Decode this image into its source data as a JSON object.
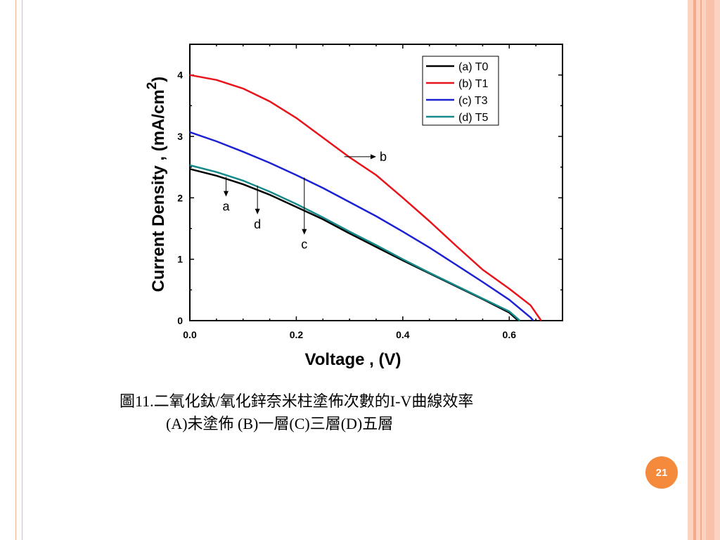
{
  "chart_data": {
    "type": "line",
    "xlabel": "Voltage , (V)",
    "ylabel": "Current Density , (mA/cm",
    "ylabel_sup": "2",
    "ylabel_close": ")",
    "xlim": [
      0,
      0.7
    ],
    "ylim": [
      0,
      4.5
    ],
    "xticks": [
      "0.0",
      "0.2",
      "0.4",
      "0.6"
    ],
    "yticks": [
      "0",
      "1",
      "2",
      "3",
      "4"
    ],
    "grid": false,
    "legend_position": "top-right",
    "series": [
      {
        "name": "(a) T0",
        "color": "#000000",
        "x": [
          0,
          0.05,
          0.1,
          0.15,
          0.2,
          0.25,
          0.3,
          0.35,
          0.4,
          0.45,
          0.5,
          0.55,
          0.6,
          0.61,
          0.617
        ],
        "y": [
          2.47,
          2.36,
          2.22,
          2.05,
          1.85,
          1.65,
          1.42,
          1.2,
          0.98,
          0.77,
          0.56,
          0.35,
          0.13,
          0.05,
          0
        ]
      },
      {
        "name": "(b) T1",
        "color": "#e8141b",
        "x": [
          0,
          0.05,
          0.1,
          0.15,
          0.2,
          0.25,
          0.3,
          0.35,
          0.4,
          0.45,
          0.5,
          0.55,
          0.6,
          0.64,
          0.66
        ],
        "y": [
          4.0,
          3.92,
          3.78,
          3.57,
          3.3,
          2.98,
          2.66,
          2.37,
          2.0,
          1.62,
          1.22,
          0.83,
          0.52,
          0.25,
          0
        ]
      },
      {
        "name": "(c) T3",
        "color": "#1c22d2",
        "x": [
          0,
          0.05,
          0.1,
          0.15,
          0.2,
          0.25,
          0.3,
          0.35,
          0.4,
          0.45,
          0.5,
          0.55,
          0.6,
          0.64,
          0.645
        ],
        "y": [
          3.07,
          2.92,
          2.75,
          2.57,
          2.37,
          2.16,
          1.93,
          1.7,
          1.45,
          1.19,
          0.91,
          0.63,
          0.34,
          0.05,
          0
        ]
      },
      {
        "name": "(d) T5",
        "color": "#168a8a",
        "x": [
          0,
          0.05,
          0.1,
          0.15,
          0.2,
          0.25,
          0.3,
          0.35,
          0.4,
          0.45,
          0.5,
          0.55,
          0.6,
          0.612,
          0.62
        ],
        "y": [
          2.53,
          2.42,
          2.28,
          2.1,
          1.9,
          1.68,
          1.45,
          1.23,
          1.0,
          0.78,
          0.57,
          0.36,
          0.15,
          0.06,
          0
        ]
      }
    ],
    "annotations": [
      {
        "label": "a",
        "x": 0.068,
        "y_from": 2.34,
        "y_to": 2.02,
        "dir": "down"
      },
      {
        "label": "d",
        "x": 0.127,
        "y_from": 2.2,
        "y_to": 1.73,
        "dir": "down"
      },
      {
        "label": "c",
        "x": 0.215,
        "y_from": 2.33,
        "y_to": 1.4,
        "dir": "down"
      },
      {
        "label": "b",
        "x_from": 0.29,
        "x_to": 0.35,
        "y": 2.67,
        "dir": "right"
      }
    ]
  },
  "caption": {
    "line1": "圖11.二氧化鈦/氧化鋅奈米柱塗佈次數的I-V曲線效率",
    "line2": "(A)未塗佈 (B)一層(C)三層(D)五層"
  },
  "page_number": "21"
}
